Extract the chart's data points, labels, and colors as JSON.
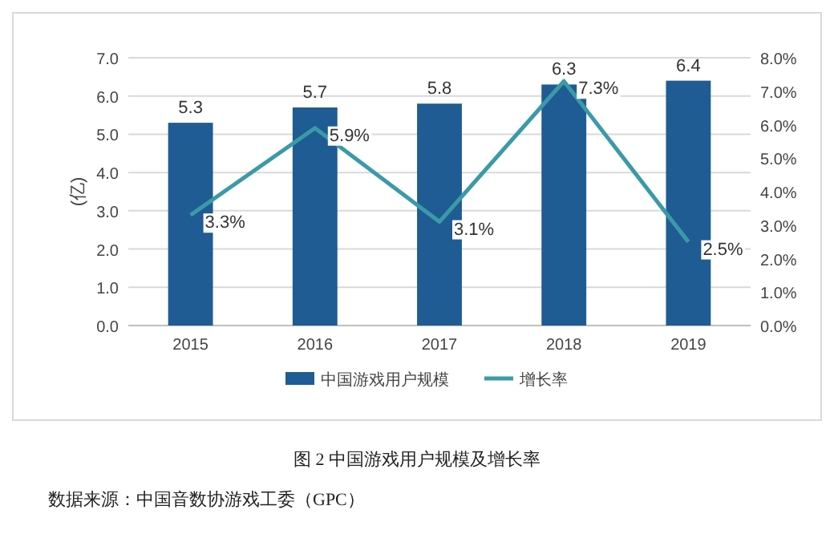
{
  "chart_data": {
    "type": "bar",
    "title": "图 2 中国游戏用户规模及增长率",
    "ylabel": "(亿)",
    "categories": [
      "2015",
      "2016",
      "2017",
      "2018",
      "2019"
    ],
    "series": [
      {
        "name": "中国游戏用户规模",
        "color": "#1f5c93",
        "values": [
          5.3,
          5.7,
          5.8,
          6.3,
          6.4
        ],
        "value_labels": [
          "5.3",
          "5.7",
          "5.8",
          "6.3",
          "6.4"
        ]
      },
      {
        "name": "增长率",
        "type": "line",
        "axis": "y2",
        "color": "#3a9aa8",
        "values": [
          3.3,
          5.9,
          3.1,
          7.3,
          2.5
        ],
        "value_labels": [
          "3.3%",
          "5.9%",
          "3.1%",
          "7.3%",
          "2.5%"
        ]
      }
    ],
    "ylim": [
      0,
      7
    ],
    "yticks": [
      {
        "value": 0,
        "label": "0.0"
      },
      {
        "value": 1,
        "label": "1.0"
      },
      {
        "value": 2,
        "label": "2.0"
      },
      {
        "value": 3,
        "label": "3.0"
      },
      {
        "value": 4,
        "label": "4.0"
      },
      {
        "value": 5,
        "label": "5.0"
      },
      {
        "value": 6,
        "label": "6.0"
      },
      {
        "value": 7,
        "label": "7.0"
      }
    ],
    "y2lim": [
      0,
      8
    ],
    "y2ticks": [
      {
        "value": 0,
        "label": "0.0%"
      },
      {
        "value": 1,
        "label": "1.0%"
      },
      {
        "value": 2,
        "label": "2.0%"
      },
      {
        "value": 3,
        "label": "3.0%"
      },
      {
        "value": 4,
        "label": "4.0%"
      },
      {
        "value": 5,
        "label": "5.0%"
      },
      {
        "value": 6,
        "label": "6.0%"
      },
      {
        "value": 7,
        "label": "7.0%"
      },
      {
        "value": 8,
        "label": "8.0%"
      }
    ],
    "grid": "y",
    "legend": "bottom",
    "annotations": [
      "数据来源：中国音数协游戏工委（GPC）"
    ]
  }
}
